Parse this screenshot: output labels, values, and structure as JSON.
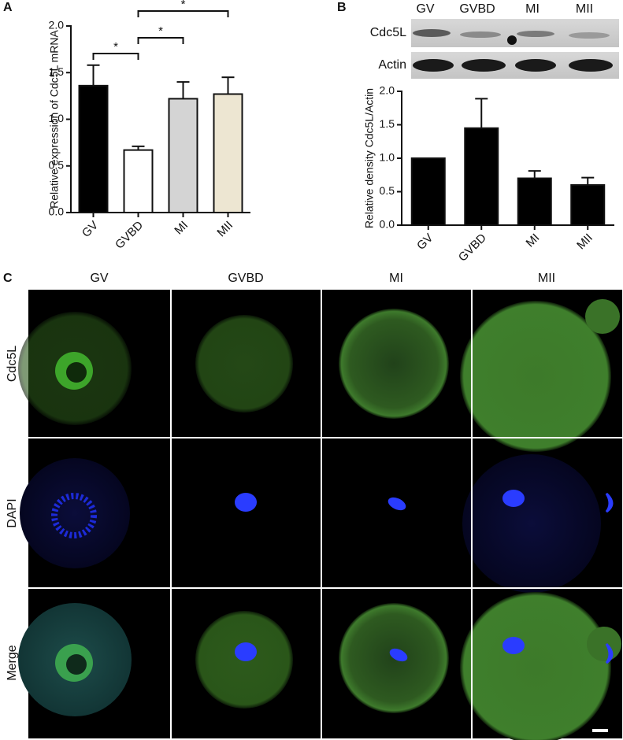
{
  "panels": [
    "A",
    "B",
    "C"
  ],
  "chart_data": [
    {
      "type": "bar",
      "y_label": "Relative expression of Cdc5L mRNA",
      "categories": [
        "GV",
        "GVBD",
        "MI",
        "MII"
      ],
      "series": [
        {
          "values": [
            1.36,
            0.67,
            1.22,
            1.27
          ],
          "errors": [
            0.22,
            0.04,
            0.18,
            0.18
          ],
          "colors": [
            "#000000",
            "#ffffff",
            "#d4d4d4",
            "#ede6d2"
          ]
        }
      ],
      "ylim": [
        0,
        2
      ],
      "yticks": [
        {
          "value": 0,
          "label": "0.0"
        },
        0.5,
        {
          "value": 1,
          "label": "1.0"
        },
        1.5,
        {
          "value": 2,
          "label": "2.0"
        }
      ],
      "comparisons": [
        {
          "label": "*",
          "pair": [
            "GV",
            "GVBD"
          ]
        },
        {
          "label": "*",
          "pair": [
            "GVBD",
            "MI"
          ]
        },
        {
          "label": "*",
          "pair": [
            "GVBD",
            "MII"
          ]
        }
      ]
    },
    {
      "type": "bar",
      "y_label": "Relative density Cdc5L/Actin",
      "categories": [
        "GV",
        "GVBD",
        "MI",
        "MII"
      ],
      "series": [
        {
          "values": [
            1.0,
            1.45,
            0.7,
            0.6
          ],
          "errors": [
            0,
            0.44,
            0.11,
            0.11
          ],
          "colors": [
            "#000000",
            "#000000",
            "#000000",
            "#000000"
          ]
        }
      ],
      "ylim": [
        0,
        2
      ],
      "yticks": [
        {
          "value": 0,
          "label": "0.0"
        },
        0.5,
        {
          "value": 1,
          "label": "1.0"
        },
        1.5,
        {
          "value": 2,
          "label": "2.0"
        }
      ]
    }
  ],
  "blot": {
    "columns": [
      "GV",
      "GVBD",
      "MI",
      "MII"
    ],
    "rows": [
      "Cdc5L",
      "Actin"
    ]
  },
  "micrographs": {
    "columns": [
      "GV",
      "GVBD",
      "MI",
      "MII"
    ],
    "rows": [
      "Cdc5L",
      "DAPI",
      "Merge"
    ]
  }
}
